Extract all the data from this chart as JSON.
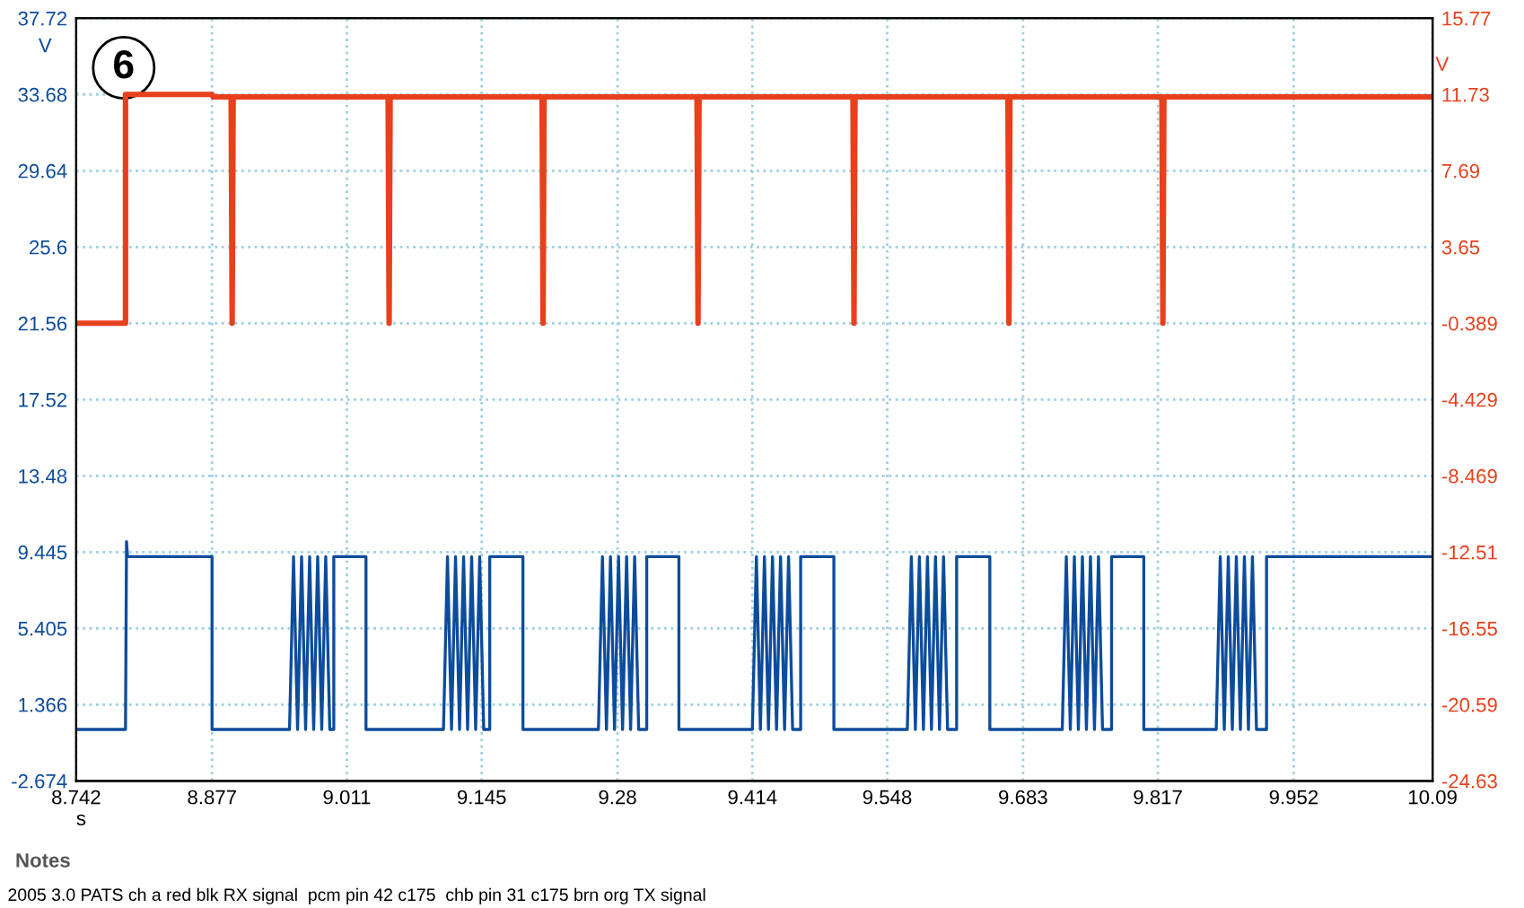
{
  "chart_data": {
    "type": "line",
    "xlabel": "s",
    "ylabel": "V",
    "y2label": "V",
    "xlim": [
      8.742,
      10.09
    ],
    "xticks": [
      8.742,
      8.877,
      9.011,
      9.145,
      9.28,
      9.414,
      9.548,
      9.683,
      9.817,
      9.952,
      10.09
    ],
    "ylim": [
      -2.674,
      37.72
    ],
    "yticks": [
      -2.674,
      1.366,
      5.405,
      9.445,
      13.48,
      17.52,
      21.56,
      25.6,
      29.64,
      33.68,
      37.72
    ],
    "y2lim": [
      -24.63,
      15.77
    ],
    "y2ticks": [
      -24.63,
      -20.59,
      -16.55,
      -12.51,
      -8.469,
      -4.429,
      -0.389,
      3.65,
      7.69,
      11.73,
      15.77
    ],
    "grid": true,
    "legend": false,
    "line_style": "solid",
    "marker": "none",
    "annotations": [
      "6",
      "Notes",
      "2005 3.0 PATS ch a red blk RX signal  pcm pin 42 c175  chb pin 31 c175 brn org TX signal"
    ],
    "series": [
      {
        "color": "#e8401c",
        "axis": "y2",
        "x": [
          8.742,
          8.791,
          8.791,
          8.877,
          8.878,
          8.896,
          8.897,
          8.898,
          9.052,
          9.053,
          9.054,
          9.205,
          9.206,
          9.207,
          9.359,
          9.36,
          9.361,
          9.514,
          9.515,
          9.516,
          9.668,
          9.669,
          9.67,
          9.821,
          9.822,
          9.823,
          10.09
        ],
        "values": [
          -0.389,
          -0.389,
          11.73,
          11.73,
          11.6,
          11.6,
          -0.389,
          11.6,
          11.6,
          -0.389,
          11.6,
          11.6,
          -0.389,
          11.6,
          11.6,
          -0.389,
          11.6,
          11.6,
          -0.389,
          11.6,
          11.6,
          -0.389,
          11.6,
          11.6,
          -0.389,
          11.6,
          11.6
        ]
      },
      {
        "color": "#0d4c9c",
        "axis": "y",
        "x": [
          8.742,
          8.791,
          8.792,
          8.793,
          8.877,
          8.877,
          8.954,
          8.958,
          8.962,
          8.966,
          8.97,
          8.974,
          8.978,
          8.982,
          8.986,
          8.99,
          8.994,
          8.998,
          8.998,
          9.03,
          9.03,
          9.107,
          9.111,
          9.115,
          9.119,
          9.123,
          9.127,
          9.131,
          9.135,
          9.139,
          9.143,
          9.147,
          9.153,
          9.153,
          9.186,
          9.186,
          9.261,
          9.265,
          9.269,
          9.273,
          9.277,
          9.281,
          9.285,
          9.289,
          9.293,
          9.297,
          9.301,
          9.309,
          9.309,
          9.341,
          9.341,
          9.414,
          9.418,
          9.422,
          9.426,
          9.43,
          9.434,
          9.438,
          9.442,
          9.446,
          9.45,
          9.454,
          9.462,
          9.462,
          9.495,
          9.495,
          9.568,
          9.572,
          9.576,
          9.58,
          9.584,
          9.588,
          9.592,
          9.596,
          9.6,
          9.604,
          9.608,
          9.617,
          9.617,
          9.65,
          9.65,
          9.722,
          9.726,
          9.73,
          9.734,
          9.738,
          9.742,
          9.746,
          9.75,
          9.754,
          9.758,
          9.762,
          9.771,
          9.771,
          9.803,
          9.803,
          9.875,
          9.879,
          9.883,
          9.887,
          9.891,
          9.895,
          9.899,
          9.903,
          9.907,
          9.911,
          9.915,
          9.925,
          9.925,
          10.09
        ],
        "values": [
          0.05,
          0.05,
          10.0,
          9.2,
          9.2,
          0.05,
          0.05,
          9.2,
          0.05,
          9.2,
          0.05,
          9.2,
          0.05,
          9.2,
          0.05,
          9.2,
          0.05,
          0.05,
          9.2,
          9.2,
          0.05,
          0.05,
          9.2,
          0.05,
          9.2,
          0.05,
          9.2,
          0.05,
          9.2,
          0.05,
          9.2,
          0.05,
          0.05,
          9.2,
          9.2,
          0.05,
          0.05,
          9.2,
          0.05,
          9.2,
          0.05,
          9.2,
          0.05,
          9.2,
          0.05,
          9.2,
          0.05,
          0.05,
          9.2,
          9.2,
          0.05,
          0.05,
          9.2,
          0.05,
          9.2,
          0.05,
          9.2,
          0.05,
          9.2,
          0.05,
          9.2,
          0.05,
          0.05,
          9.2,
          9.2,
          0.05,
          0.05,
          9.2,
          0.05,
          9.2,
          0.05,
          9.2,
          0.05,
          9.2,
          0.05,
          9.2,
          0.05,
          0.05,
          9.2,
          9.2,
          0.05,
          0.05,
          9.2,
          0.05,
          9.2,
          0.05,
          9.2,
          0.05,
          9.2,
          0.05,
          9.2,
          0.05,
          0.05,
          9.2,
          9.2,
          0.05,
          0.05,
          9.2,
          0.05,
          9.2,
          0.05,
          9.2,
          0.05,
          9.2,
          0.05,
          9.2,
          0.05,
          0.05,
          9.2,
          9.2
        ]
      }
    ]
  }
}
